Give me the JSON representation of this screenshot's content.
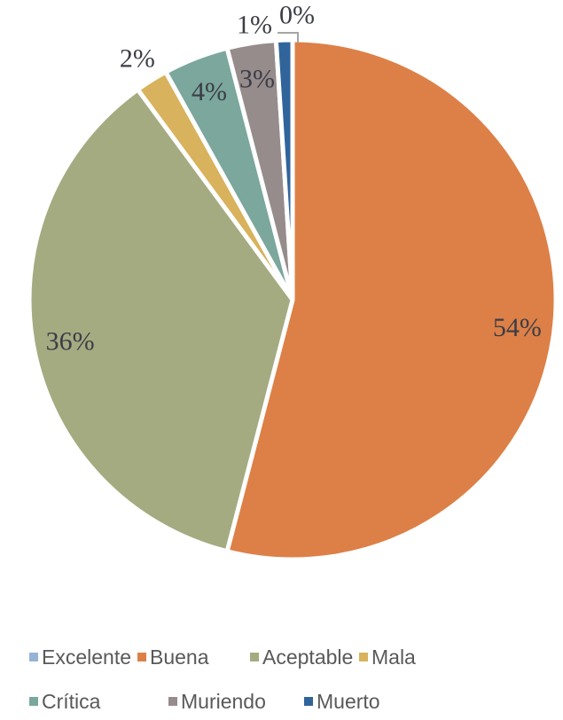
{
  "page": {
    "background_color": "#FFFFFF"
  },
  "chart_data": {
    "type": "pie",
    "title": "",
    "legend_position": "bottom",
    "start_angle_deg": 0,
    "direction": "clockwise",
    "data_label_format": "percent",
    "label_text_color": "#3B3D46",
    "legend_text_color": "#595959",
    "leader_line_color": "#A6A6A6",
    "slice_border_color": "#FFFFFF",
    "slices": [
      {
        "name": "Excelente",
        "value": 0,
        "label": "0%",
        "color": "#95B3D7"
      },
      {
        "name": "Buena",
        "value": 54,
        "label": "54%",
        "color": "#DD8047"
      },
      {
        "name": "Aceptable",
        "value": 36,
        "label": "36%",
        "color": "#A5AB81"
      },
      {
        "name": "Mala",
        "value": 2,
        "label": "2%",
        "color": "#D8B25C"
      },
      {
        "name": "Crítica",
        "value": 4,
        "label": "4%",
        "color": "#7BA79D"
      },
      {
        "name": "Muriendo",
        "value": 3,
        "label": "3%",
        "color": "#968C8C"
      },
      {
        "name": "Muerto",
        "value": 1,
        "label": "1%",
        "color": "#31649B"
      }
    ]
  }
}
